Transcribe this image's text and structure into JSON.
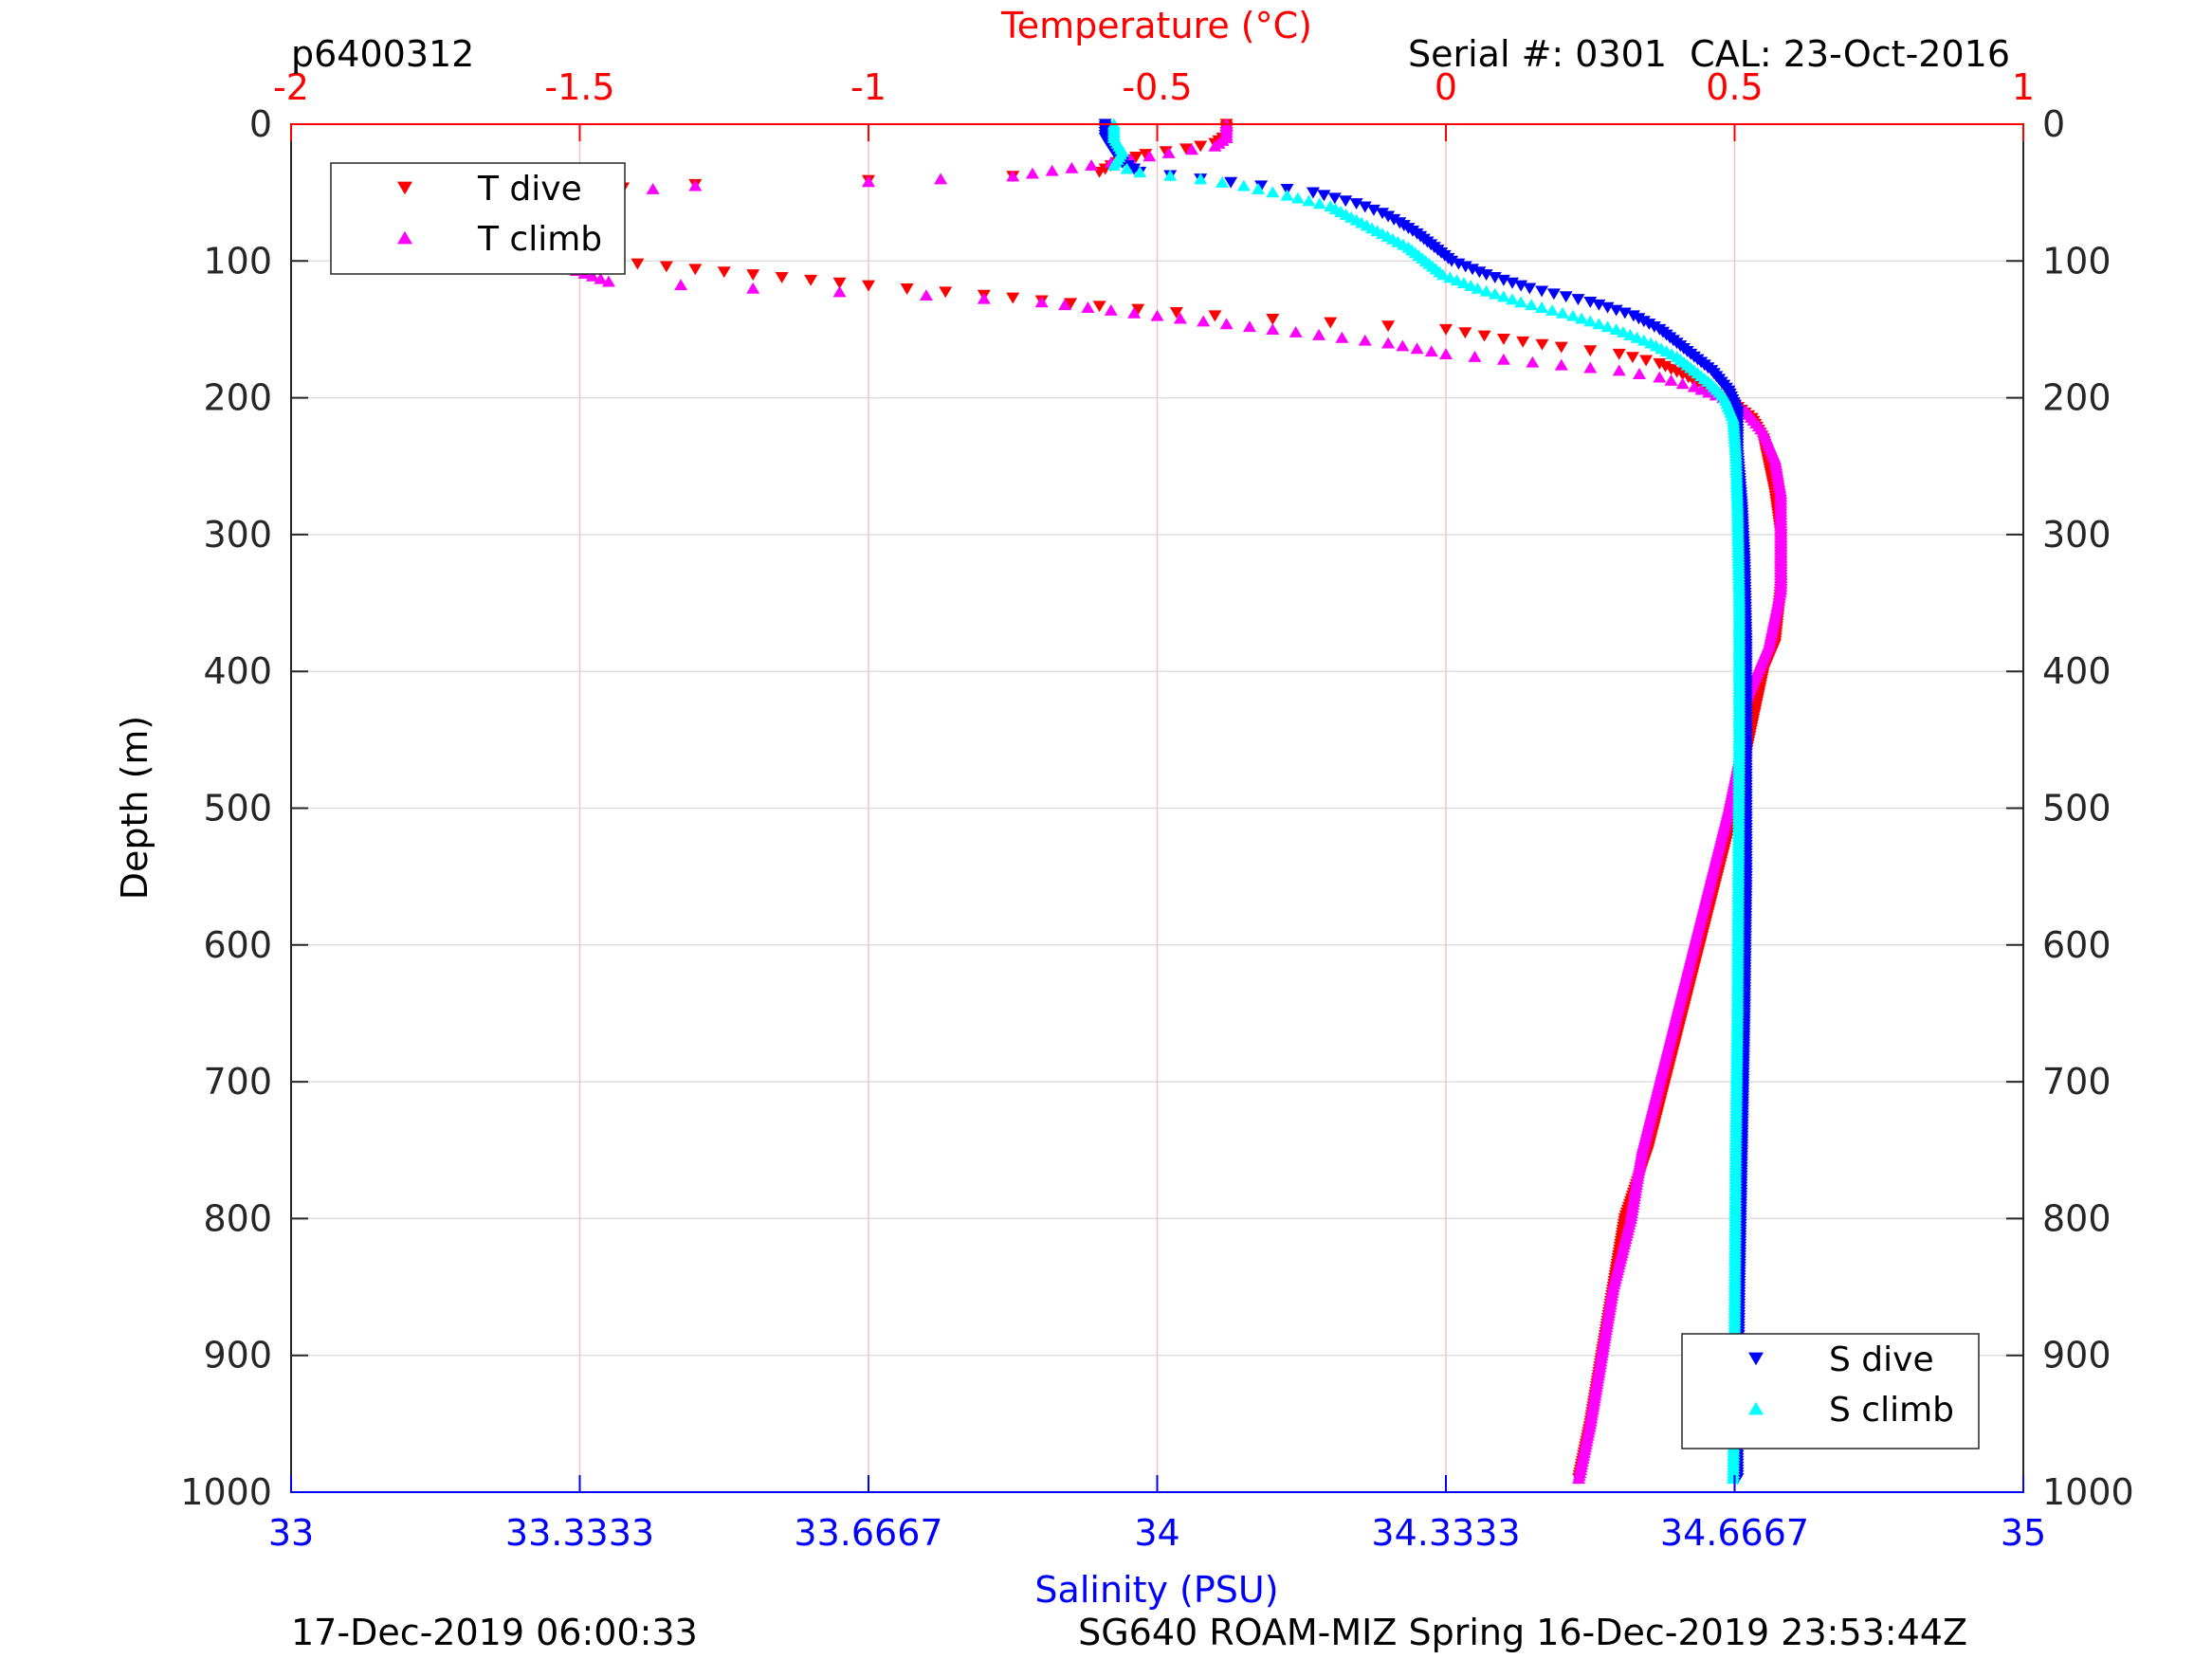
{
  "header": {
    "profile_id": "p6400312",
    "serial_cal": "Serial #: 0301  CAL: 23-Oct-2016"
  },
  "footer": {
    "left": "17-Dec-2019 06:00:33",
    "right": "SG640 ROAM-MIZ Spring 16-Dec-2019 23:53:44Z"
  },
  "colors": {
    "temperature_axis": "#ff0000",
    "salinity_axis": "#0000ff",
    "t_dive": "#ff0000",
    "t_climb": "#ff00ff",
    "s_dive": "#0000ff",
    "s_climb": "#00ffff",
    "grid": "#dddddd",
    "temp_grid": "#f4c4c4"
  },
  "chart_data": {
    "type": "scatter",
    "ylabel": "Depth (m)",
    "y_reversed": true,
    "ylim": [
      0,
      1000
    ],
    "yticks": [
      "0",
      "100",
      "200",
      "300",
      "400",
      "500",
      "600",
      "700",
      "800",
      "900",
      "1000"
    ],
    "temperature_axis": {
      "label": "Temperature (°C)",
      "position": "top",
      "xlim": [
        -2,
        1
      ],
      "ticks": [
        "-2",
        "-1.5",
        "-1",
        "-0.5",
        "0",
        "0.5",
        "1"
      ]
    },
    "salinity_axis": {
      "label": "Salinity (PSU)",
      "position": "bottom",
      "xlim": [
        33,
        35
      ],
      "ticks": [
        "33",
        "33.3333",
        "33.6667",
        "34",
        "34.3333",
        "34.6667",
        "35"
      ]
    },
    "legends": [
      {
        "placement": "top-left",
        "entries": [
          "T dive",
          "T climb"
        ]
      },
      {
        "placement": "bottom-right",
        "entries": [
          "S dive",
          "S climb"
        ]
      }
    ],
    "series": [
      {
        "name": "T dive",
        "axis": "temperature",
        "marker": "triangle-down",
        "points": [
          [
            -0.38,
            0
          ],
          [
            -0.38,
            8
          ],
          [
            -0.4,
            14
          ],
          [
            -0.45,
            18
          ],
          [
            -0.52,
            22
          ],
          [
            -0.57,
            28
          ],
          [
            -0.6,
            35
          ],
          [
            -0.75,
            38
          ],
          [
            -1.0,
            41
          ],
          [
            -1.3,
            44
          ],
          [
            -1.55,
            49
          ],
          [
            -1.72,
            55
          ],
          [
            -1.76,
            62
          ],
          [
            -1.75,
            70
          ],
          [
            -1.7,
            78
          ],
          [
            -1.6,
            86
          ],
          [
            -1.5,
            95
          ],
          [
            -1.4,
            102
          ],
          [
            -1.2,
            110
          ],
          [
            -1.0,
            118
          ],
          [
            -0.8,
            125
          ],
          [
            -0.6,
            133
          ],
          [
            -0.4,
            140
          ],
          [
            -0.2,
            145
          ],
          [
            0.0,
            150
          ],
          [
            0.1,
            157
          ],
          [
            0.2,
            163
          ],
          [
            0.3,
            168
          ],
          [
            0.37,
            175
          ],
          [
            0.42,
            185
          ],
          [
            0.46,
            195
          ],
          [
            0.5,
            205
          ],
          [
            0.53,
            215
          ],
          [
            0.55,
            230
          ],
          [
            0.56,
            250
          ],
          [
            0.57,
            270
          ],
          [
            0.58,
            300
          ],
          [
            0.58,
            340
          ],
          [
            0.57,
            380
          ],
          [
            0.55,
            400
          ],
          [
            0.54,
            420
          ],
          [
            0.52,
            460
          ],
          [
            0.5,
            500
          ],
          [
            0.47,
            550
          ],
          [
            0.44,
            600
          ],
          [
            0.41,
            650
          ],
          [
            0.38,
            700
          ],
          [
            0.35,
            750
          ],
          [
            0.31,
            800
          ],
          [
            0.29,
            850
          ],
          [
            0.27,
            900
          ],
          [
            0.25,
            950
          ],
          [
            0.23,
            990
          ]
        ]
      },
      {
        "name": "T climb",
        "axis": "temperature",
        "marker": "triangle-up",
        "points": [
          [
            -0.38,
            0
          ],
          [
            -0.38,
            10
          ],
          [
            -0.4,
            16
          ],
          [
            -0.48,
            21
          ],
          [
            -0.58,
            28
          ],
          [
            -0.75,
            38
          ],
          [
            -1.0,
            42
          ],
          [
            -1.3,
            45
          ],
          [
            -1.52,
            52
          ],
          [
            -1.65,
            60
          ],
          [
            -1.7,
            68
          ],
          [
            -1.72,
            77
          ],
          [
            -1.68,
            86
          ],
          [
            -1.6,
            95
          ],
          [
            -1.52,
            105
          ],
          [
            -1.45,
            115
          ],
          [
            -1.2,
            120
          ],
          [
            -0.9,
            125
          ],
          [
            -0.7,
            130
          ],
          [
            -0.5,
            140
          ],
          [
            -0.3,
            150
          ],
          [
            -0.1,
            160
          ],
          [
            0.0,
            168
          ],
          [
            0.1,
            172
          ],
          [
            0.2,
            176
          ],
          [
            0.3,
            180
          ],
          [
            0.37,
            185
          ],
          [
            0.43,
            192
          ],
          [
            0.48,
            200
          ],
          [
            0.52,
            210
          ],
          [
            0.55,
            225
          ],
          [
            0.57,
            245
          ],
          [
            0.58,
            270
          ],
          [
            0.58,
            300
          ],
          [
            0.58,
            340
          ],
          [
            0.56,
            380
          ],
          [
            0.54,
            400
          ],
          [
            0.52,
            420
          ],
          [
            0.51,
            460
          ],
          [
            0.49,
            500
          ],
          [
            0.46,
            550
          ],
          [
            0.43,
            600
          ],
          [
            0.4,
            650
          ],
          [
            0.37,
            700
          ],
          [
            0.34,
            750
          ],
          [
            0.32,
            800
          ],
          [
            0.29,
            850
          ],
          [
            0.27,
            900
          ],
          [
            0.25,
            950
          ],
          [
            0.23,
            990
          ]
        ]
      },
      {
        "name": "S dive",
        "axis": "salinity",
        "marker": "triangle-down",
        "points": [
          [
            33.94,
            0
          ],
          [
            33.94,
            10
          ],
          [
            33.95,
            20
          ],
          [
            33.96,
            28
          ],
          [
            33.98,
            35
          ],
          [
            34.05,
            40
          ],
          [
            34.12,
            45
          ],
          [
            34.18,
            50
          ],
          [
            34.23,
            58
          ],
          [
            34.26,
            65
          ],
          [
            34.28,
            72
          ],
          [
            34.3,
            80
          ],
          [
            34.32,
            90
          ],
          [
            34.34,
            100
          ],
          [
            34.38,
            110
          ],
          [
            34.43,
            120
          ],
          [
            34.5,
            130
          ],
          [
            34.55,
            140
          ],
          [
            34.58,
            150
          ],
          [
            34.6,
            160
          ],
          [
            34.62,
            170
          ],
          [
            34.64,
            180
          ],
          [
            34.66,
            195
          ],
          [
            34.67,
            210
          ],
          [
            34.67,
            240
          ],
          [
            34.675,
            280
          ],
          [
            34.678,
            320
          ],
          [
            34.68,
            380
          ],
          [
            34.68,
            450
          ],
          [
            34.68,
            550
          ],
          [
            34.678,
            650
          ],
          [
            34.675,
            750
          ],
          [
            34.672,
            850
          ],
          [
            34.67,
            950
          ],
          [
            34.67,
            990
          ]
        ]
      },
      {
        "name": "S climb",
        "axis": "salinity",
        "marker": "triangle-up",
        "points": [
          [
            33.95,
            0
          ],
          [
            33.95,
            10
          ],
          [
            33.96,
            20
          ],
          [
            33.95,
            30
          ],
          [
            33.98,
            35
          ],
          [
            34.05,
            40
          ],
          [
            34.1,
            45
          ],
          [
            34.15,
            52
          ],
          [
            34.2,
            60
          ],
          [
            34.23,
            70
          ],
          [
            34.26,
            80
          ],
          [
            34.29,
            90
          ],
          [
            34.31,
            100
          ],
          [
            34.33,
            110
          ],
          [
            34.37,
            120
          ],
          [
            34.42,
            130
          ],
          [
            34.48,
            140
          ],
          [
            34.53,
            150
          ],
          [
            34.57,
            160
          ],
          [
            34.6,
            170
          ],
          [
            34.62,
            180
          ],
          [
            34.64,
            190
          ],
          [
            34.655,
            200
          ],
          [
            34.665,
            215
          ],
          [
            34.668,
            240
          ],
          [
            34.67,
            280
          ],
          [
            34.672,
            350
          ],
          [
            34.672,
            450
          ],
          [
            34.671,
            550
          ],
          [
            34.67,
            650
          ],
          [
            34.668,
            750
          ],
          [
            34.667,
            850
          ],
          [
            34.666,
            950
          ],
          [
            34.665,
            990
          ]
        ]
      }
    ]
  }
}
